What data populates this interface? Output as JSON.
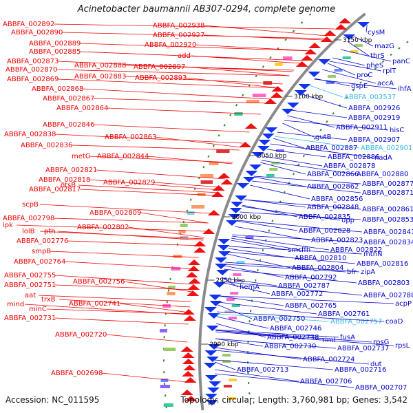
{
  "header": {
    "title": "Acinetobacter baumannii AB307-0294, complete genome"
  },
  "footer": {
    "accession": "Accession: NC_011595",
    "topology": "Topology: circular; Length: 3,760,981 bp; Genes: 3,542"
  },
  "colors": {
    "left_label": "#ee0000",
    "right_label": "#0000cc",
    "highlight_label": "#33b8e8",
    "backbone": "#8a8a8a"
  },
  "kbp_marks": [
    "3150 kbp",
    "3100 kbp",
    "3050 kbp",
    "3000 kbp",
    "2950 kbp",
    "2900 kbp"
  ],
  "left_labels": [
    "ABBFA_002892",
    "ABBFA_002890",
    "ABBFA_002889",
    "ABBFA_002885",
    "ABBFA_002873",
    "ABBFA_002888",
    "ABBFA_002870",
    "ABBFA_002883",
    "ABBFA_002869",
    "ABBFA_002868",
    "ABBFA_002867",
    "ABBFA_002864",
    "ABBFA_002846",
    "ABBFA_002838",
    "ABBFA_002863",
    "ABBFA_002836",
    "metG",
    "ABBFA_002844",
    "ABBFA_002821",
    "ABBFA_002818",
    "ABBFA_002829",
    "ABBFA_002817",
    "otsB",
    "scpB",
    "ABBFA_002809",
    "ABBFA_002798",
    "ipk",
    "lolB",
    "pth",
    "ABBFA_002802",
    "ABBFA_002776",
    "smpB",
    "ABBFA_002764",
    "ABBFA_002755",
    "ABBFA_002756",
    "ABBFA_002751",
    "aat",
    "trxB",
    "ABBFA_002741",
    "mind",
    "minC",
    "ABBFA_002731",
    "ABBFA_002720",
    "ABBFA_002698",
    "ABBFA_002938",
    "ABBFA_002927",
    "ABBFA_002920",
    "add",
    "ABBFA_002897",
    "ABBFA_002893"
  ],
  "right_labels": [
    "cysM",
    "mazG",
    "panC",
    "thrS",
    "pheS",
    "rplT",
    "proC",
    "accA",
    "gspE",
    "ihfA",
    "ABBFA_003537",
    "ABBFA_002926",
    "ABBFA_002919",
    "hisC",
    "ABBFA_002911",
    "gutB",
    "ABBFA_002907",
    "ABBFA_002887",
    "ABBFA_002901",
    "nadA",
    "ABBFA_002886",
    "ABBFA_002878",
    "ABBFA_002866",
    "ABBFA_002880",
    "ABBFA_002877",
    "ABBFA_002862",
    "ABBFA_002871",
    "ABBFA_002856",
    "ABBFA_002848",
    "ABBFA_002861",
    "ABBFA_002835",
    "upp",
    "ABBFA_002853",
    "ABBFA_002828",
    "ABBFA_002841",
    "ABBFA_002823",
    "ABBFA_002834",
    "smc",
    "ffh",
    "ABBFA_002822",
    "mtnN",
    "ABBFA_002810",
    "ABBFA_002816",
    "ABBFA_002804",
    "bfr",
    "zipA",
    "ABBFA_002792",
    "ABBFA_002803",
    "ABBFA_002787",
    "hemA",
    "ABBFA_002772",
    "ABBFA_002788",
    "acpP",
    "ABBFA_002765",
    "ABBFA_002761",
    "ABBFA_002750",
    "ABBFA_002757",
    "coaD",
    "ABBFA_002746",
    "ABBFA_002738",
    "fusA",
    "rimI",
    "rpsG",
    "rpsL",
    "ABBFA_002730",
    "ABBFA_002737",
    "ABBFA_002724",
    "dut",
    "ABBFA_002713",
    "ABBFA_002716",
    "ABBFA_002706",
    "ABBFA_002707"
  ]
}
